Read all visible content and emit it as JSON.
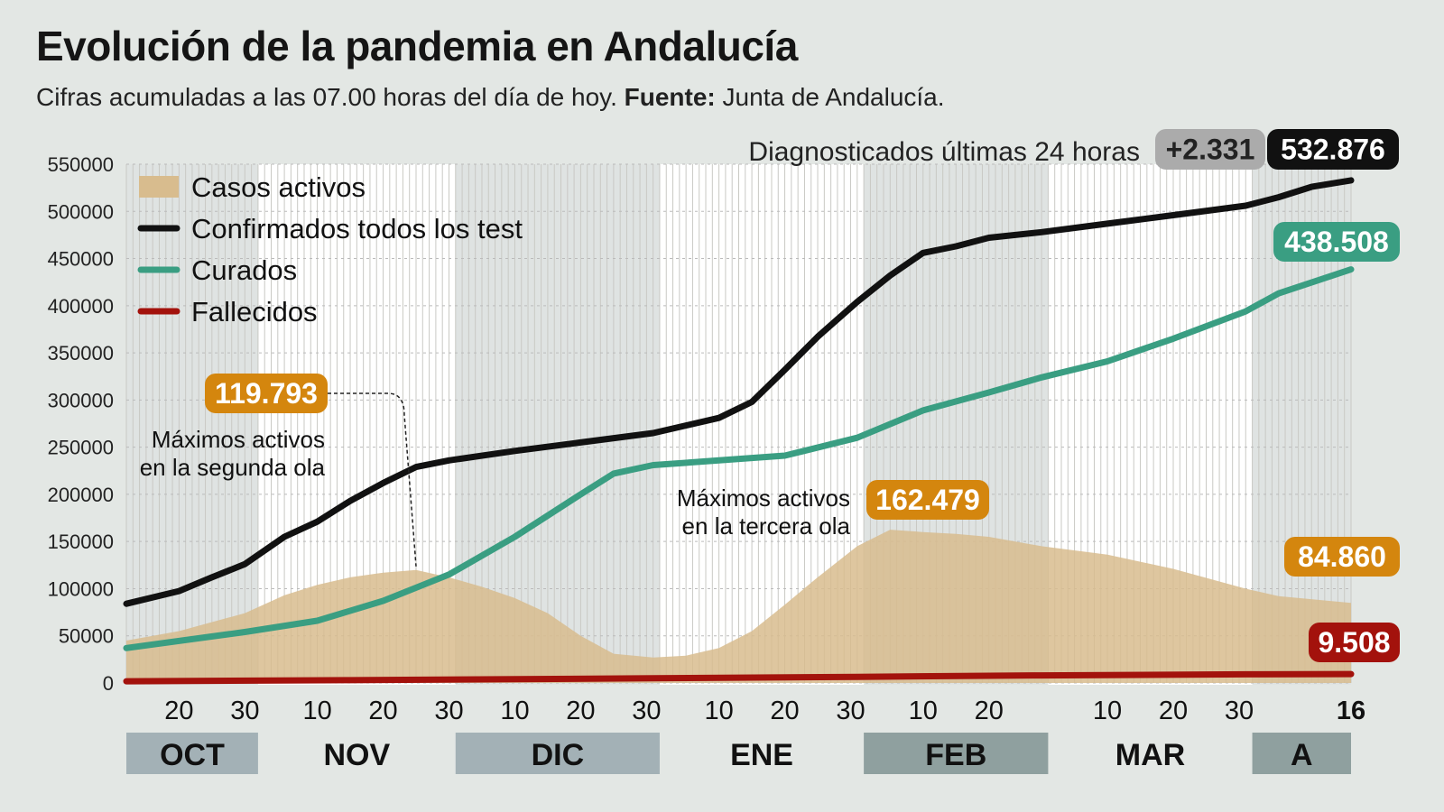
{
  "header": {
    "title": "Evolución de la pandemia en Andalucía",
    "subtitle_main": "Cifras acumuladas a las 07.00 horas del día de hoy. ",
    "subtitle_source_label": "Fuente:",
    "subtitle_source": " Junta de Andalucía."
  },
  "chart_data": {
    "type": "line",
    "x_axis": {
      "range": [
        "2020-10-12",
        "2021-04-16"
      ],
      "day_ticks": [
        {
          "date": "2020-10-20",
          "label": "20"
        },
        {
          "date": "2020-10-30",
          "label": "30"
        },
        {
          "date": "2020-11-10",
          "label": "10"
        },
        {
          "date": "2020-11-20",
          "label": "20"
        },
        {
          "date": "2020-11-30",
          "label": "30"
        },
        {
          "date": "2020-12-10",
          "label": "10"
        },
        {
          "date": "2020-12-20",
          "label": "20"
        },
        {
          "date": "2020-12-30",
          "label": "30"
        },
        {
          "date": "2021-01-10",
          "label": "10"
        },
        {
          "date": "2021-01-20",
          "label": "20"
        },
        {
          "date": "2021-01-30",
          "label": "30"
        },
        {
          "date": "2021-02-10",
          "label": "10"
        },
        {
          "date": "2021-02-20",
          "label": "20"
        },
        {
          "date": "2021-03-10",
          "label": "10"
        },
        {
          "date": "2021-03-20",
          "label": "20"
        },
        {
          "date": "2021-03-30",
          "label": "30"
        },
        {
          "date": "2021-04-16",
          "label": "16",
          "bold": true
        }
      ],
      "months": [
        {
          "label": "OCT",
          "start": "2020-10-12",
          "end": "2020-11-01",
          "shade": "#a3b1b6"
        },
        {
          "label": "NOV",
          "start": "2020-11-01",
          "end": "2020-12-01",
          "shade": ""
        },
        {
          "label": "DIC",
          "start": "2020-12-01",
          "end": "2021-01-01",
          "shade": "#a3b1b6"
        },
        {
          "label": "ENE",
          "start": "2021-01-01",
          "end": "2021-02-01",
          "shade": ""
        },
        {
          "label": "FEB",
          "start": "2021-02-01",
          "end": "2021-03-01",
          "shade": "#8fa09f"
        },
        {
          "label": "MAR",
          "start": "2021-03-01",
          "end": "2021-04-01",
          "shade": ""
        },
        {
          "label": "A",
          "start": "2021-04-01",
          "end": "2021-04-16",
          "shade": "#8fa09f"
        }
      ]
    },
    "y_axis": {
      "range": [
        0,
        550000
      ],
      "ticks": [
        0,
        50000,
        100000,
        150000,
        200000,
        250000,
        300000,
        350000,
        400000,
        450000,
        500000,
        550000
      ],
      "grid": true
    },
    "legend_position": "top-left",
    "series": [
      {
        "name": "Casos activos",
        "kind": "area",
        "color": "#d8bc8e",
        "points": [
          [
            "2020-10-12",
            45000
          ],
          [
            "2020-10-20",
            55000
          ],
          [
            "2020-10-30",
            74000
          ],
          [
            "2020-11-05",
            93000
          ],
          [
            "2020-11-10",
            104000
          ],
          [
            "2020-11-15",
            112000
          ],
          [
            "2020-11-20",
            117000
          ],
          [
            "2020-11-25",
            119793
          ],
          [
            "2020-11-30",
            112000
          ],
          [
            "2020-12-05",
            102000
          ],
          [
            "2020-12-10",
            90000
          ],
          [
            "2020-12-15",
            74000
          ],
          [
            "2020-12-20",
            50000
          ],
          [
            "2020-12-25",
            31000
          ],
          [
            "2020-12-31",
            27000
          ],
          [
            "2021-01-05",
            29000
          ],
          [
            "2021-01-10",
            37000
          ],
          [
            "2021-01-15",
            55000
          ],
          [
            "2021-01-20",
            83000
          ],
          [
            "2021-01-25",
            112000
          ],
          [
            "2021-01-31",
            145000
          ],
          [
            "2021-02-05",
            162479
          ],
          [
            "2021-02-10",
            160000
          ],
          [
            "2021-02-15",
            158000
          ],
          [
            "2021-02-20",
            155000
          ],
          [
            "2021-02-28",
            145000
          ],
          [
            "2021-03-10",
            136000
          ],
          [
            "2021-03-20",
            121000
          ],
          [
            "2021-03-31",
            100000
          ],
          [
            "2021-04-05",
            92000
          ],
          [
            "2021-04-16",
            84860
          ]
        ]
      },
      {
        "name": "Confirmados todos los test",
        "kind": "line",
        "color": "#111111",
        "points": [
          [
            "2020-10-12",
            84000
          ],
          [
            "2020-10-20",
            97500
          ],
          [
            "2020-10-25",
            112000
          ],
          [
            "2020-10-30",
            126000
          ],
          [
            "2020-11-05",
            155000
          ],
          [
            "2020-11-10",
            171000
          ],
          [
            "2020-11-15",
            193000
          ],
          [
            "2020-11-20",
            212000
          ],
          [
            "2020-11-25",
            229000
          ],
          [
            "2020-11-30",
            236000
          ],
          [
            "2020-12-10",
            246000
          ],
          [
            "2020-12-20",
            255000
          ],
          [
            "2020-12-31",
            265000
          ],
          [
            "2021-01-10",
            281000
          ],
          [
            "2021-01-15",
            298000
          ],
          [
            "2021-01-20",
            332000
          ],
          [
            "2021-01-25",
            367000
          ],
          [
            "2021-01-31",
            404000
          ],
          [
            "2021-02-05",
            432000
          ],
          [
            "2021-02-10",
            456000
          ],
          [
            "2021-02-15",
            463000
          ],
          [
            "2021-02-20",
            472000
          ],
          [
            "2021-02-28",
            478000
          ],
          [
            "2021-03-10",
            487000
          ],
          [
            "2021-03-20",
            496000
          ],
          [
            "2021-03-31",
            506000
          ],
          [
            "2021-04-05",
            515000
          ],
          [
            "2021-04-10",
            526000
          ],
          [
            "2021-04-16",
            532876
          ]
        ]
      },
      {
        "name": "Curados",
        "kind": "line",
        "color": "#3a9e82",
        "points": [
          [
            "2020-10-12",
            37000
          ],
          [
            "2020-10-30",
            54000
          ],
          [
            "2020-11-10",
            66000
          ],
          [
            "2020-11-20",
            87000
          ],
          [
            "2020-11-30",
            115000
          ],
          [
            "2020-12-10",
            155000
          ],
          [
            "2020-12-20",
            200000
          ],
          [
            "2020-12-25",
            222000
          ],
          [
            "2020-12-31",
            231000
          ],
          [
            "2021-01-10",
            236000
          ],
          [
            "2021-01-20",
            241000
          ],
          [
            "2021-01-31",
            260000
          ],
          [
            "2021-02-10",
            289000
          ],
          [
            "2021-02-20",
            308000
          ],
          [
            "2021-02-28",
            324000
          ],
          [
            "2021-03-10",
            341000
          ],
          [
            "2021-03-20",
            365000
          ],
          [
            "2021-03-31",
            394000
          ],
          [
            "2021-04-05",
            413000
          ],
          [
            "2021-04-16",
            438508
          ]
        ]
      },
      {
        "name": "Fallecidos",
        "kind": "line",
        "color": "#a3120c",
        "points": [
          [
            "2020-10-12",
            1800
          ],
          [
            "2020-11-15",
            3000
          ],
          [
            "2020-12-31",
            5000
          ],
          [
            "2021-01-31",
            6500
          ],
          [
            "2021-02-28",
            8000
          ],
          [
            "2021-03-31",
            9200
          ],
          [
            "2021-04-16",
            9508
          ]
        ]
      }
    ],
    "annotations": {
      "daily_label": "Diagnosticados últimas 24 horas",
      "daily_value": "+2.331",
      "confirmed_end": "532.876",
      "cured_end": "438.508",
      "active_end": "84.860",
      "deaths_end": "9.508",
      "peak2_value": "119.793",
      "peak2_date": "2020-11-25",
      "peak2_line1": "Máximos activos",
      "peak2_line2": "en la segunda ola",
      "peak3_value": "162.479",
      "peak3_line1": "Máximos activos",
      "peak3_line2": "en la tercera ola"
    },
    "colors": {
      "badge_gray": "#ababab",
      "active_label": "#d4860e",
      "deaths_label": "#a3120c",
      "cured_label": "#3a9e82",
      "confirmed_label": "#111111"
    }
  }
}
